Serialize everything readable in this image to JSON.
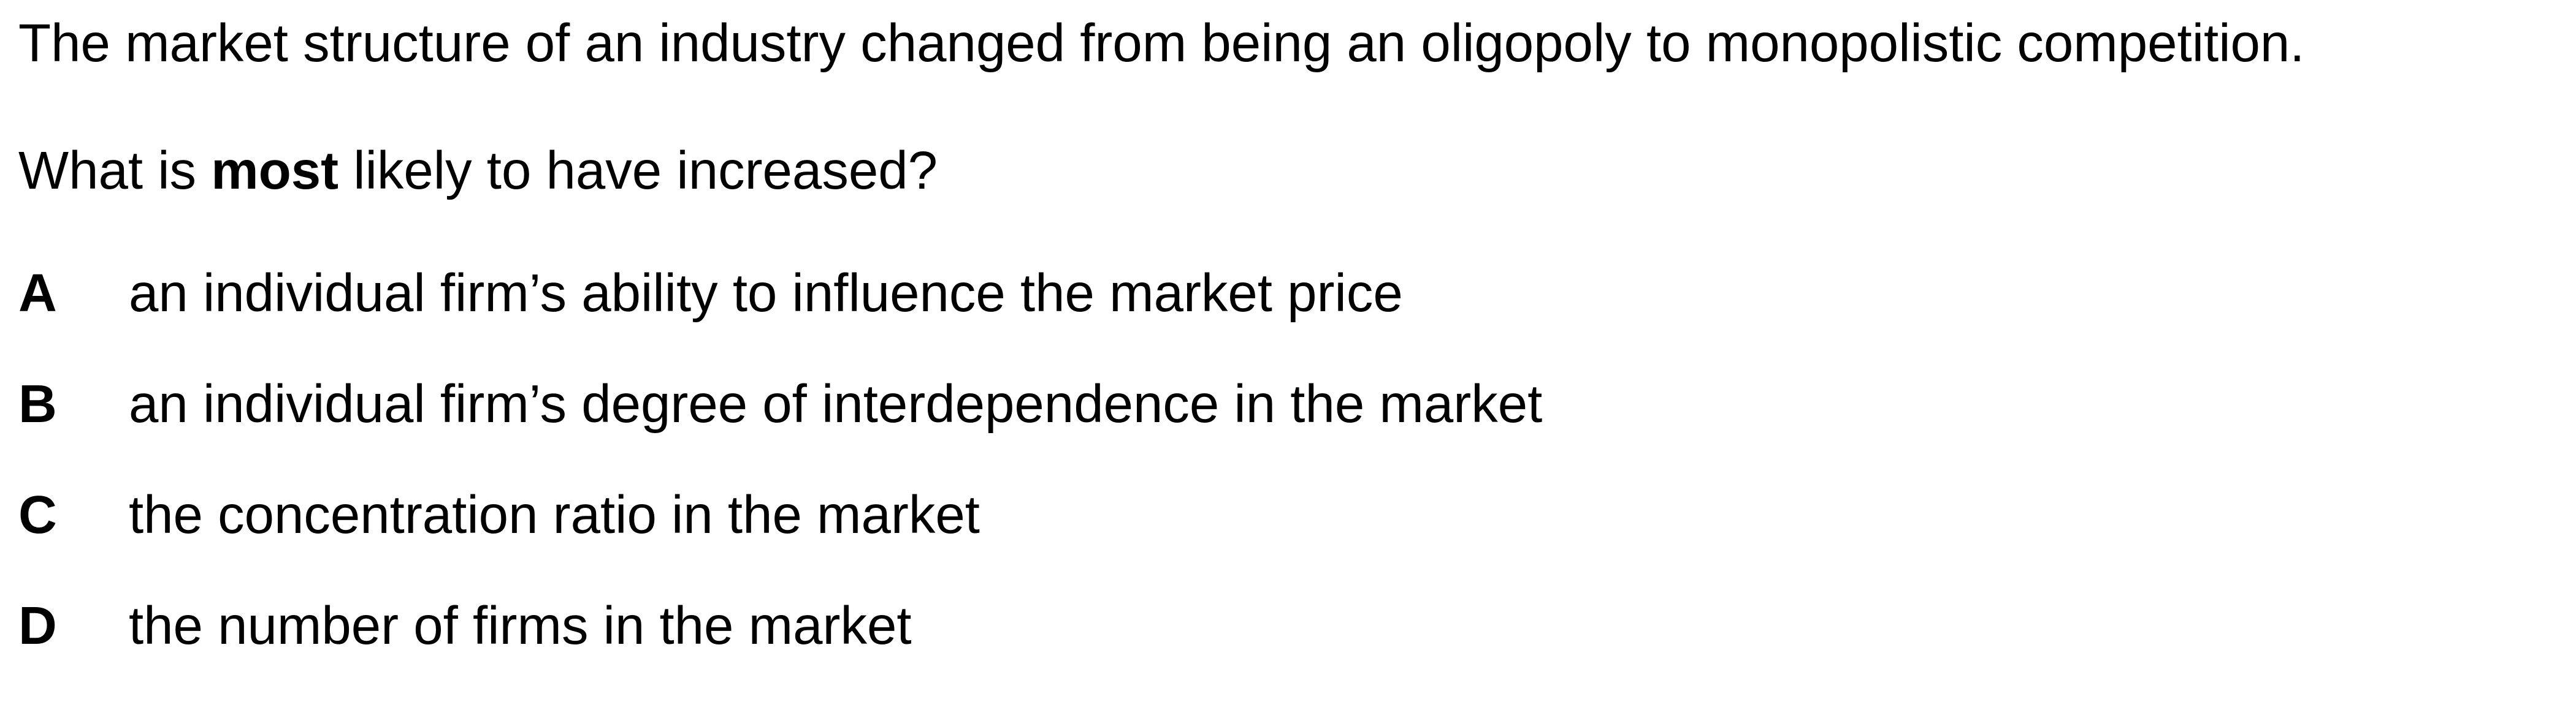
{
  "question": {
    "statement": "The market structure of an industry changed from being an oligopoly to monopolistic competition.",
    "prompt_before": "What is ",
    "prompt_emphasis": "most",
    "prompt_after": " likely to have increased?"
  },
  "options": [
    {
      "letter": "A",
      "text": "an individual firm’s ability to influence the market price"
    },
    {
      "letter": "B",
      "text": "an individual firm’s degree of interdependence in the market"
    },
    {
      "letter": "C",
      "text": "the concentration ratio in the market"
    },
    {
      "letter": "D",
      "text": "the number of firms in the market"
    }
  ]
}
